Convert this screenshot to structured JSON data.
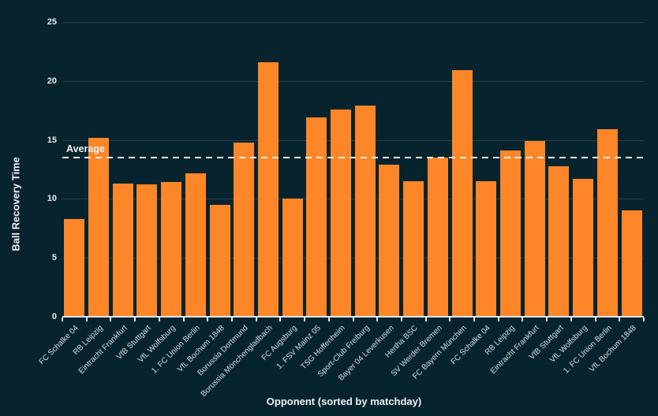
{
  "chart_data": {
    "type": "bar",
    "xlabel": "Opponent (sorted by matchday)",
    "ylabel": "Ball Recovery Time",
    "categories": [
      "FC Schalke 04",
      "RB Leipzig",
      "Eintracht Frankfurt",
      "VfB Stuttgart",
      "VfL Wolfsburg",
      "1. FC Union Berlin",
      "VfL Bochum 1848",
      "Borussia Dortmund",
      "Borussia Mönchengladbach",
      "FC Augsburg",
      "1. FSV Mainz 05",
      "TSG Hoffenheim",
      "Sport-Club Freiburg",
      "Bayer 04 Leverkusen",
      "Hertha BSC",
      "SV Werder Bremen",
      "FC Bayern München",
      "FC Schalke 04",
      "RB Leipzig",
      "Eintracht Frankfurt",
      "VfB Stuttgart",
      "VfL Wolfsburg",
      "1. FC Union Berlin",
      "VfL Bochum 1848"
    ],
    "values": [
      8.3,
      15.2,
      11.3,
      11.2,
      11.4,
      12.2,
      9.5,
      14.8,
      21.6,
      10.0,
      16.9,
      17.6,
      17.9,
      12.9,
      11.5,
      13.5,
      20.9,
      11.5,
      14.1,
      14.9,
      12.8,
      11.7,
      15.9,
      9.0
    ],
    "ylim": [
      0,
      25
    ],
    "yticks": [
      0,
      5,
      10,
      15,
      20,
      25
    ],
    "grid": "horizontal",
    "legend": "none",
    "average_line": {
      "label": "Average",
      "value": 13.6,
      "style": "dashed"
    },
    "colors": {
      "background": "#07232e",
      "bar": "#fc8628",
      "grid": "#a9c8d2",
      "axis": "#dfe8ea",
      "text": "#e9f0f2",
      "average_line": "#f2f4f3"
    }
  }
}
